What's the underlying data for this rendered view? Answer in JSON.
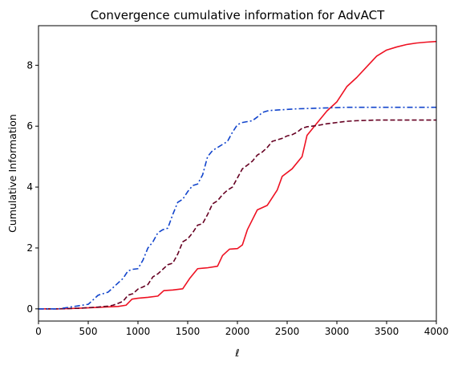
{
  "chart_data": {
    "type": "line",
    "title": "Convergence cumulative information for AdvACT",
    "xlabel": "ℓ",
    "ylabel": "Cumulative Information",
    "xlim": [
      0,
      4000
    ],
    "ylim": [
      -0.4,
      9.3
    ],
    "xticks": [
      0,
      500,
      1000,
      1500,
      2000,
      2500,
      3000,
      3500,
      4000
    ],
    "yticks": [
      0,
      2,
      4,
      6,
      8
    ],
    "grid": false,
    "legend": "none",
    "series": [
      {
        "color": "#ee1122",
        "style": "solid",
        "x": [
          0,
          200,
          400,
          600,
          800,
          880,
          940,
          1000,
          1100,
          1200,
          1260,
          1350,
          1450,
          1520,
          1600,
          1700,
          1800,
          1850,
          1920,
          2000,
          2050,
          2100,
          2200,
          2300,
          2400,
          2450,
          2550,
          2650,
          2700,
          2800,
          2900,
          3000,
          3100,
          3200,
          3300,
          3400,
          3500,
          3600,
          3700,
          3800,
          3900,
          4000
        ],
        "y": [
          0,
          0,
          0.02,
          0.05,
          0.08,
          0.12,
          0.32,
          0.35,
          0.38,
          0.42,
          0.6,
          0.62,
          0.66,
          1.0,
          1.32,
          1.35,
          1.4,
          1.75,
          1.96,
          1.98,
          2.1,
          2.6,
          3.25,
          3.4,
          3.9,
          4.35,
          4.6,
          5.0,
          5.7,
          6.1,
          6.5,
          6.8,
          7.3,
          7.6,
          7.95,
          8.3,
          8.5,
          8.6,
          8.68,
          8.73,
          8.76,
          8.78
        ]
      },
      {
        "color": "#660022",
        "style": "dashed",
        "x": [
          0,
          200,
          400,
          600,
          700,
          750,
          800,
          850,
          900,
          950,
          1000,
          1050,
          1100,
          1150,
          1200,
          1250,
          1300,
          1350,
          1400,
          1450,
          1500,
          1550,
          1600,
          1650,
          1700,
          1750,
          1800,
          1850,
          1900,
          1950,
          2000,
          2050,
          2100,
          2150,
          2200,
          2250,
          2300,
          2350,
          2400,
          2450,
          2500,
          2550,
          2600,
          2650,
          2700,
          2750,
          2800,
          2900,
          3000,
          3100,
          3200,
          3300,
          3400,
          3500,
          4000
        ],
        "y": [
          0,
          0,
          0.02,
          0.06,
          0.09,
          0.12,
          0.18,
          0.25,
          0.45,
          0.5,
          0.65,
          0.72,
          0.8,
          1.05,
          1.15,
          1.3,
          1.45,
          1.5,
          1.8,
          2.2,
          2.3,
          2.5,
          2.75,
          2.8,
          3.1,
          3.45,
          3.55,
          3.75,
          3.9,
          4.0,
          4.3,
          4.6,
          4.72,
          4.85,
          5.05,
          5.15,
          5.3,
          5.5,
          5.55,
          5.6,
          5.68,
          5.72,
          5.8,
          5.93,
          5.98,
          6.0,
          6.02,
          6.08,
          6.12,
          6.16,
          6.18,
          6.19,
          6.2,
          6.2,
          6.2
        ]
      },
      {
        "color": "#1144cc",
        "style": "dashdot",
        "x": [
          0,
          200,
          300,
          400,
          500,
          550,
          600,
          650,
          700,
          750,
          800,
          850,
          900,
          950,
          1000,
          1050,
          1100,
          1150,
          1200,
          1250,
          1300,
          1350,
          1400,
          1450,
          1500,
          1550,
          1600,
          1650,
          1700,
          1750,
          1800,
          1850,
          1900,
          1950,
          2000,
          2050,
          2100,
          2150,
          2200,
          2250,
          2300,
          2350,
          2400,
          2500,
          2600,
          2700,
          2800,
          2900,
          3000,
          3100,
          3200,
          3300,
          3500,
          4000
        ],
        "y": [
          0,
          0,
          0.05,
          0.1,
          0.15,
          0.3,
          0.45,
          0.5,
          0.55,
          0.7,
          0.85,
          1.0,
          1.25,
          1.3,
          1.32,
          1.6,
          2.0,
          2.2,
          2.5,
          2.6,
          2.65,
          3.1,
          3.5,
          3.6,
          3.85,
          4.05,
          4.1,
          4.4,
          5.0,
          5.2,
          5.3,
          5.4,
          5.5,
          5.8,
          6.05,
          6.12,
          6.15,
          6.18,
          6.3,
          6.45,
          6.5,
          6.52,
          6.53,
          6.55,
          6.57,
          6.58,
          6.59,
          6.6,
          6.61,
          6.62,
          6.62,
          6.62,
          6.62,
          6.62
        ]
      }
    ]
  }
}
